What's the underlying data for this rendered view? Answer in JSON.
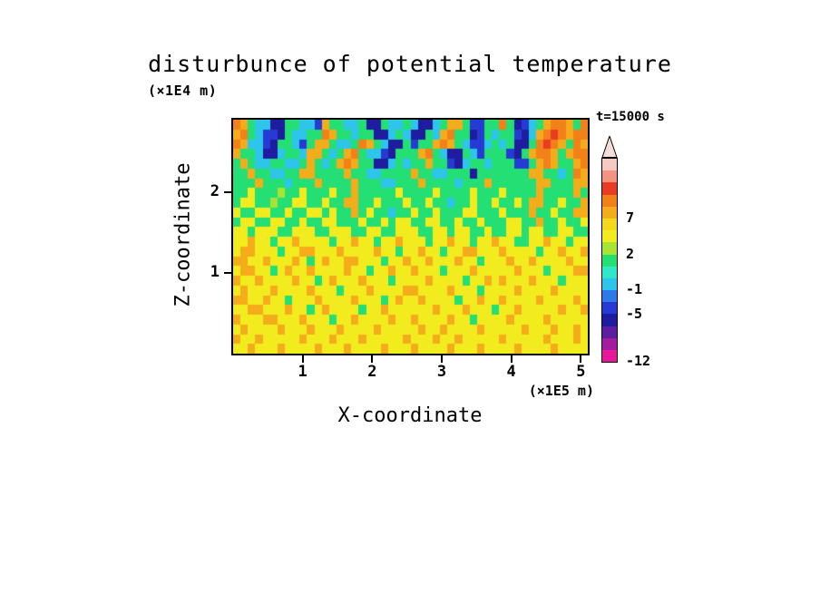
{
  "chart_data": {
    "type": "heatmap",
    "title": "disturbunce of potential temperature",
    "xlabel": "X-coordinate",
    "ylabel": "Z-coordinate",
    "x_axis_unit": "(×1E5 m)",
    "y_axis_unit": "(×1E4 m)",
    "time_annotation": "t=15000 s",
    "x_ticks": [
      "1",
      "2",
      "3",
      "4",
      "5"
    ],
    "y_ticks": [
      "1",
      "2"
    ],
    "x_range": [
      0,
      5.1
    ],
    "y_range": [
      0,
      2.9
    ],
    "grid": false,
    "legend_position": "right",
    "colorbar": {
      "orientation": "vertical",
      "arrow_fill": "#F8DCD6",
      "palette_bottom_to_top": [
        "#E8169B",
        "#A21D9E",
        "#5E1EA2",
        "#1F1C9F",
        "#263BD4",
        "#2E79E8",
        "#2DC6EA",
        "#2EE8C8",
        "#23DF74",
        "#A8E436",
        "#F2EC1F",
        "#F5D81C",
        "#F5AC1B",
        "#F2811A",
        "#E93C22",
        "#F4937F",
        "#F6C9C2"
      ],
      "ticks": [
        {
          "label": "7",
          "boundary": 12
        },
        {
          "label": "2",
          "boundary": 9
        },
        {
          "label": "-1",
          "boundary": 6
        },
        {
          "label": "-5",
          "boundary": 4
        },
        {
          "label": "-12",
          "boundary": 0
        }
      ]
    },
    "grid_encoding": "0123456789ABCDEFG",
    "grid_rows_top_to_bottom": [
      "DC8663388664C8866833866863368CC84488D83468CDDC8D",
      "CD8644386688DC88688336863386CD88348688436CDEDCDD",
      "DC664388648CC8668DC86338488CDC86446868338DEDC8DC",
      "C886336886CC868CD86643888CD8633864888438CDDC8CDD",
      "8C86688668C868CDC883368688C88436886888448CDC88CD",
      "88C886688CC8888C88668888C886688838888888CC8868DC",
      "888C8886888C8888C88866888C88886888C888888CC888CC",
      "88A888988A888A88C88888A8888A8888A888A8888C8888C8",
      "8AA88988AA88A88CC88A888A88A88688A88A88A8CC88A88C",
      "A88AA88A88AA8A88C8A88688A88A888AA888A888C88A88CC",
      "8AA88AA88A88AA888A88A8AA88AA88A88A888AA88C88A88A",
      "AA8AAA88AAA88AAA88AA88AAA88AA8AA88A88AA8AA88AA88",
      "AACAA8AACAAAA8AACAA8AACAAA8AACAA8AACAA88AACAA8AA",
      "ACCAAA8AACCAAACAAAACAA8AACAA8AACCAAACAAAA8AACAAC",
      "CCAACAAACA8ACAACCAAA8AACAACAAACAA8AAACAACAAAACAA",
      "ACCAA8ACAACAAAACAA8AACAACAAA8AAACAAAAACAAA8AAACC",
      "CAACAAAACAA8ACAAACAAA8AAAACAAAA8AACACAAACAAA8AAA",
      "ACAAACAAAACAAA8AAACAAAACCAAAACAAA8AAAACAAAACAAAA",
      "CCAACAA8AAACAAAACAAA8ACAACAAAA8AACAACAAAACAAAACA",
      "AACCAAACAA8ACAAAA8AACAAAAAACAAACAAA8AACAAAAACAAC",
      "CAAACCAAACAAA8AACAAAACAACAAAACAA8AAAACAAAACAAAAA",
      "ACAAAACAAACAAACAAAACAAAAACAACAAAACAAAAACAAACAACA",
      "CAACAAAAACAAACAAACAAAAACAAACAACAAAAACAAAAACAAACA",
      "AACAAACAAAACAAACAAAACAAACAAAACAAACAAAACAAAACAAAA"
    ]
  }
}
